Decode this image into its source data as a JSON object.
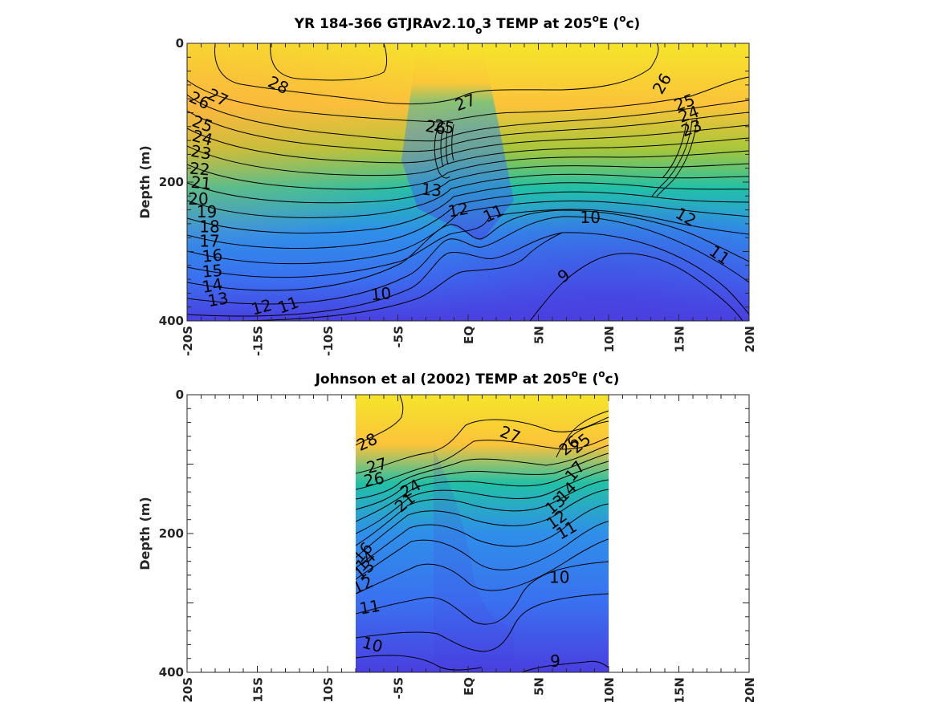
{
  "chart_data": [
    {
      "type": "heatmap",
      "title": {
        "prefix": "YR 184-366 GTJRAv2.10",
        "sub": "o",
        "after_sub": "3 TEMP at 205",
        "sup1": "o",
        "mid": "E (",
        "sup2": "o",
        "suffix": "c)"
      },
      "ylabel": "Depth (m)",
      "xlim": [
        -20,
        20
      ],
      "ylim": [
        0,
        400
      ],
      "y_reversed": true,
      "x_ticks": [
        {
          "value": -20,
          "label": "-20S"
        },
        {
          "value": -15,
          "label": "-15S"
        },
        {
          "value": -10,
          "label": "-10S"
        },
        {
          "value": -5,
          "label": "-5S"
        },
        {
          "value": 0,
          "label": "EQ"
        },
        {
          "value": 5,
          "label": "5N"
        },
        {
          "value": 10,
          "label": "10N"
        },
        {
          "value": 15,
          "label": "15N"
        },
        {
          "value": 20,
          "label": "20N"
        }
      ],
      "y_ticks": [
        {
          "value": 0,
          "label": "0"
        },
        {
          "value": 200,
          "label": "200"
        },
        {
          "value": 400,
          "label": "400"
        }
      ],
      "data_extent_x": [
        -20,
        20
      ],
      "colormap": [
        "#f5e52a",
        "#fbc33a",
        "#a8c63a",
        "#22c0a7",
        "#2f8fe9",
        "#3a70f0",
        "#4a3fe0"
      ],
      "value_range": [
        9,
        28
      ],
      "contour_levels": [
        9,
        10,
        11,
        12,
        13,
        14,
        15,
        16,
        17,
        18,
        19,
        20,
        21,
        22,
        23,
        24,
        25,
        26,
        27,
        28
      ],
      "contour_labels": [
        {
          "text": "28",
          "x": -13.5,
          "y": 60,
          "angle": 25
        },
        {
          "text": "27",
          "x": -17.8,
          "y": 78,
          "angle": 25
        },
        {
          "text": "26",
          "x": -19.1,
          "y": 82,
          "angle": 25
        },
        {
          "text": "25",
          "x": -18.9,
          "y": 116,
          "angle": 20
        },
        {
          "text": "24",
          "x": -18.9,
          "y": 136,
          "angle": 15
        },
        {
          "text": "23",
          "x": -19.0,
          "y": 157,
          "angle": 10
        },
        {
          "text": "22",
          "x": -19.1,
          "y": 181,
          "angle": 5
        },
        {
          "text": "21",
          "x": -19.0,
          "y": 201,
          "angle": 5
        },
        {
          "text": "20",
          "x": -19.2,
          "y": 224,
          "angle": 0
        },
        {
          "text": "19",
          "x": -18.6,
          "y": 243,
          "angle": 0
        },
        {
          "text": "18",
          "x": -18.4,
          "y": 264,
          "angle": 0
        },
        {
          "text": "17",
          "x": -18.4,
          "y": 285,
          "angle": 0
        },
        {
          "text": "16",
          "x": -18.2,
          "y": 306,
          "angle": -5
        },
        {
          "text": "15",
          "x": -18.2,
          "y": 328,
          "angle": -5
        },
        {
          "text": "14",
          "x": -18.2,
          "y": 349,
          "angle": -10
        },
        {
          "text": "13",
          "x": -17.8,
          "y": 369,
          "angle": -10
        },
        {
          "text": "12",
          "x": -14.7,
          "y": 380,
          "angle": -15
        },
        {
          "text": "11",
          "x": -12.8,
          "y": 377,
          "angle": -20
        },
        {
          "text": "10",
          "x": -6.2,
          "y": 361,
          "angle": -5
        },
        {
          "text": "27",
          "x": -0.2,
          "y": 85,
          "angle": -20
        },
        {
          "text": "26",
          "x": -2.3,
          "y": 121,
          "angle": 10
        },
        {
          "text": "25",
          "x": -1.7,
          "y": 120,
          "angle": 10
        },
        {
          "text": "13",
          "x": -2.6,
          "y": 211,
          "angle": 5
        },
        {
          "text": "12",
          "x": -0.7,
          "y": 240,
          "angle": -10
        },
        {
          "text": "11",
          "x": 1.8,
          "y": 245,
          "angle": -25
        },
        {
          "text": "10",
          "x": 8.7,
          "y": 251,
          "angle": 0
        },
        {
          "text": "9",
          "x": 6.8,
          "y": 335,
          "angle": -35
        },
        {
          "text": "26",
          "x": 13.8,
          "y": 58,
          "angle": -60
        },
        {
          "text": "25",
          "x": 15.4,
          "y": 85,
          "angle": -20
        },
        {
          "text": "24",
          "x": 15.7,
          "y": 102,
          "angle": -20
        },
        {
          "text": "23",
          "x": 15.9,
          "y": 122,
          "angle": -20
        },
        {
          "text": "12",
          "x": 15.5,
          "y": 250,
          "angle": 30
        },
        {
          "text": "11",
          "x": 17.9,
          "y": 305,
          "angle": 35
        }
      ]
    },
    {
      "type": "heatmap",
      "title": {
        "prefix": "Johnson et al (2002) TEMP at 205",
        "sup1": "o",
        "mid": "E (",
        "sup2": "o",
        "suffix": "c)"
      },
      "ylabel": "Depth (m)",
      "xlim": [
        -20,
        20
      ],
      "ylim": [
        0,
        400
      ],
      "y_reversed": true,
      "x_ticks": [
        {
          "value": -20,
          "label": "-20S"
        },
        {
          "value": -15,
          "label": "-15S"
        },
        {
          "value": -10,
          "label": "-10S"
        },
        {
          "value": -5,
          "label": "-5S"
        },
        {
          "value": 0,
          "label": "EQ"
        },
        {
          "value": 5,
          "label": "5N"
        },
        {
          "value": 10,
          "label": "10N"
        },
        {
          "value": 15,
          "label": "15N"
        },
        {
          "value": 20,
          "label": "20N"
        }
      ],
      "y_ticks": [
        {
          "value": 0,
          "label": "0"
        },
        {
          "value": 200,
          "label": "200"
        },
        {
          "value": 400,
          "label": "400"
        }
      ],
      "data_extent_x": [
        -8,
        10
      ],
      "colormap": [
        "#f5e52a",
        "#fbc33a",
        "#a8c63a",
        "#22c0a7",
        "#2f8fe9",
        "#3a70f0",
        "#4a3fe0"
      ],
      "value_range": [
        9,
        28
      ],
      "contour_levels": [
        9,
        10,
        11,
        12,
        13,
        14,
        15,
        16,
        17,
        18,
        19,
        20,
        21,
        22,
        23,
        24,
        25,
        26,
        27,
        28
      ],
      "contour_labels": [
        {
          "text": "28",
          "x": -7.2,
          "y": 68,
          "angle": -25
        },
        {
          "text": "27",
          "x": -6.5,
          "y": 102,
          "angle": -15
        },
        {
          "text": "26",
          "x": -6.7,
          "y": 122,
          "angle": -10
        },
        {
          "text": "24",
          "x": -4.1,
          "y": 135,
          "angle": -30
        },
        {
          "text": "21",
          "x": -4.5,
          "y": 155,
          "angle": -40
        },
        {
          "text": "16",
          "x": -7.5,
          "y": 227,
          "angle": -50
        },
        {
          "text": "14",
          "x": -7.3,
          "y": 240,
          "angle": -45
        },
        {
          "text": "13",
          "x": -7.4,
          "y": 252,
          "angle": -40
        },
        {
          "text": "12",
          "x": -7.5,
          "y": 274,
          "angle": -25
        },
        {
          "text": "11",
          "x": -7.0,
          "y": 306,
          "angle": -10
        },
        {
          "text": "10",
          "x": -6.8,
          "y": 360,
          "angle": 15
        },
        {
          "text": "27",
          "x": 3.0,
          "y": 57,
          "angle": 20
        },
        {
          "text": "26",
          "x": 7.2,
          "y": 73,
          "angle": -40
        },
        {
          "text": "25",
          "x": 8.0,
          "y": 70,
          "angle": -40
        },
        {
          "text": "17",
          "x": 7.6,
          "y": 110,
          "angle": -50
        },
        {
          "text": "14",
          "x": 7.0,
          "y": 140,
          "angle": -45
        },
        {
          "text": "13",
          "x": 6.2,
          "y": 158,
          "angle": -40
        },
        {
          "text": "12",
          "x": 6.3,
          "y": 180,
          "angle": -35
        },
        {
          "text": "11",
          "x": 7.0,
          "y": 195,
          "angle": -30
        },
        {
          "text": "10",
          "x": 6.5,
          "y": 263,
          "angle": 0
        },
        {
          "text": "9",
          "x": 6.2,
          "y": 384,
          "angle": 0
        }
      ]
    }
  ]
}
